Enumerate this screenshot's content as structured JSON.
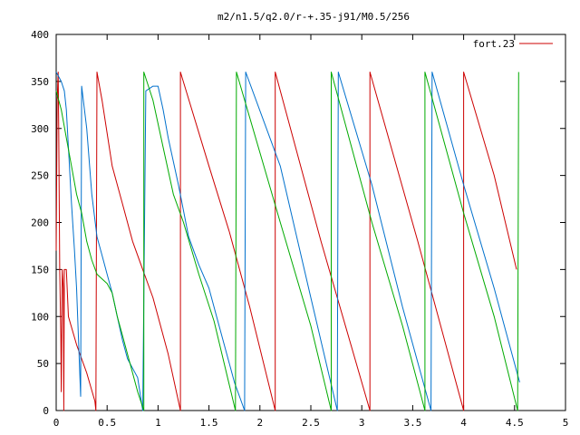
{
  "chart_data": {
    "type": "line",
    "title": "m2/n1.5/q2.0/r-+.35-j91/M0.5/256",
    "xlabel": "",
    "ylabel": "",
    "xlim": [
      0,
      5
    ],
    "ylim": [
      0,
      400
    ],
    "x_ticks": [
      "0",
      "0.5",
      "1",
      "1.5",
      "2",
      "2.5",
      "3",
      "3.5",
      "4",
      "4.5",
      "5"
    ],
    "y_ticks": [
      "0",
      "50",
      "100",
      "150",
      "200",
      "250",
      "300",
      "350",
      "400"
    ],
    "x_tick_values": [
      0,
      0.5,
      1,
      1.5,
      2,
      2.5,
      3,
      3.5,
      4,
      4.5,
      5
    ],
    "y_tick_values": [
      0,
      50,
      100,
      150,
      200,
      250,
      300,
      350,
      400
    ],
    "grid": false,
    "legend_position": "top-right",
    "series": [
      {
        "name": "fort.23",
        "color": "#cc0000",
        "points": [
          [
            0.0,
            170
          ],
          [
            0.01,
            330
          ],
          [
            0.02,
            360
          ],
          [
            0.025,
            300
          ],
          [
            0.035,
            150
          ],
          [
            0.045,
            80
          ],
          [
            0.05,
            20
          ],
          [
            0.06,
            150
          ],
          [
            0.07,
            130
          ],
          [
            0.075,
            0
          ],
          [
            0.08,
            150
          ],
          [
            0.1,
            150
          ],
          [
            0.12,
            100
          ],
          [
            0.2,
            70
          ],
          [
            0.3,
            40
          ],
          [
            0.38,
            10
          ],
          [
            0.39,
            0
          ],
          [
            0.4,
            360
          ],
          [
            0.45,
            330
          ],
          [
            0.55,
            260
          ],
          [
            0.65,
            220
          ],
          [
            0.75,
            180
          ],
          [
            0.85,
            150
          ],
          [
            0.95,
            120
          ],
          [
            1.1,
            60
          ],
          [
            1.22,
            0
          ],
          [
            1.22,
            360
          ],
          [
            1.5,
            260
          ],
          [
            1.7,
            190
          ],
          [
            1.9,
            110
          ],
          [
            2.15,
            0
          ],
          [
            2.15,
            360
          ],
          [
            2.6,
            180
          ],
          [
            3.08,
            0
          ],
          [
            3.08,
            360
          ],
          [
            3.55,
            180
          ],
          [
            4.0,
            0
          ],
          [
            4.0,
            360
          ],
          [
            4.3,
            250
          ],
          [
            4.52,
            150
          ]
        ]
      },
      {
        "name": "",
        "color": "#0070cc",
        "points": [
          [
            0.0,
            360
          ],
          [
            0.05,
            350
          ],
          [
            0.08,
            340
          ],
          [
            0.1,
            320
          ],
          [
            0.12,
            280
          ],
          [
            0.15,
            220
          ],
          [
            0.18,
            170
          ],
          [
            0.2,
            130
          ],
          [
            0.24,
            15
          ],
          [
            0.25,
            345
          ],
          [
            0.3,
            300
          ],
          [
            0.35,
            230
          ],
          [
            0.4,
            185
          ],
          [
            0.45,
            165
          ],
          [
            0.5,
            145
          ],
          [
            0.55,
            125
          ],
          [
            0.6,
            100
          ],
          [
            0.65,
            75
          ],
          [
            0.7,
            55
          ],
          [
            0.75,
            45
          ],
          [
            0.8,
            35
          ],
          [
            0.85,
            0
          ],
          [
            0.88,
            340
          ],
          [
            0.95,
            345
          ],
          [
            1.0,
            345
          ],
          [
            1.05,
            320
          ],
          [
            1.1,
            290
          ],
          [
            1.2,
            240
          ],
          [
            1.3,
            185
          ],
          [
            1.4,
            155
          ],
          [
            1.5,
            130
          ],
          [
            1.6,
            90
          ],
          [
            1.75,
            30
          ],
          [
            1.85,
            0
          ],
          [
            1.86,
            360
          ],
          [
            2.2,
            260
          ],
          [
            2.5,
            120
          ],
          [
            2.76,
            0
          ],
          [
            2.77,
            360
          ],
          [
            3.1,
            240
          ],
          [
            3.4,
            110
          ],
          [
            3.68,
            0
          ],
          [
            3.69,
            360
          ],
          [
            4.0,
            240
          ],
          [
            4.3,
            130
          ],
          [
            4.55,
            30
          ]
        ]
      },
      {
        "name": "",
        "color": "#00aa00",
        "points": [
          [
            0.0,
            340
          ],
          [
            0.05,
            320
          ],
          [
            0.1,
            290
          ],
          [
            0.15,
            260
          ],
          [
            0.2,
            230
          ],
          [
            0.25,
            210
          ],
          [
            0.3,
            180
          ],
          [
            0.35,
            160
          ],
          [
            0.4,
            145
          ],
          [
            0.45,
            140
          ],
          [
            0.5,
            135
          ],
          [
            0.55,
            125
          ],
          [
            0.6,
            100
          ],
          [
            0.65,
            80
          ],
          [
            0.7,
            60
          ],
          [
            0.75,
            40
          ],
          [
            0.8,
            20
          ],
          [
            0.86,
            0
          ],
          [
            0.86,
            360
          ],
          [
            0.95,
            330
          ],
          [
            1.05,
            280
          ],
          [
            1.15,
            230
          ],
          [
            1.25,
            200
          ],
          [
            1.4,
            145
          ],
          [
            1.55,
            95
          ],
          [
            1.76,
            0
          ],
          [
            1.77,
            360
          ],
          [
            2.2,
            200
          ],
          [
            2.5,
            90
          ],
          [
            2.7,
            0
          ],
          [
            2.7,
            360
          ],
          [
            3.1,
            200
          ],
          [
            3.4,
            90
          ],
          [
            3.62,
            0
          ],
          [
            3.62,
            360
          ],
          [
            4.0,
            210
          ],
          [
            4.3,
            100
          ],
          [
            4.53,
            0
          ],
          [
            4.54,
            360
          ]
        ]
      }
    ]
  }
}
